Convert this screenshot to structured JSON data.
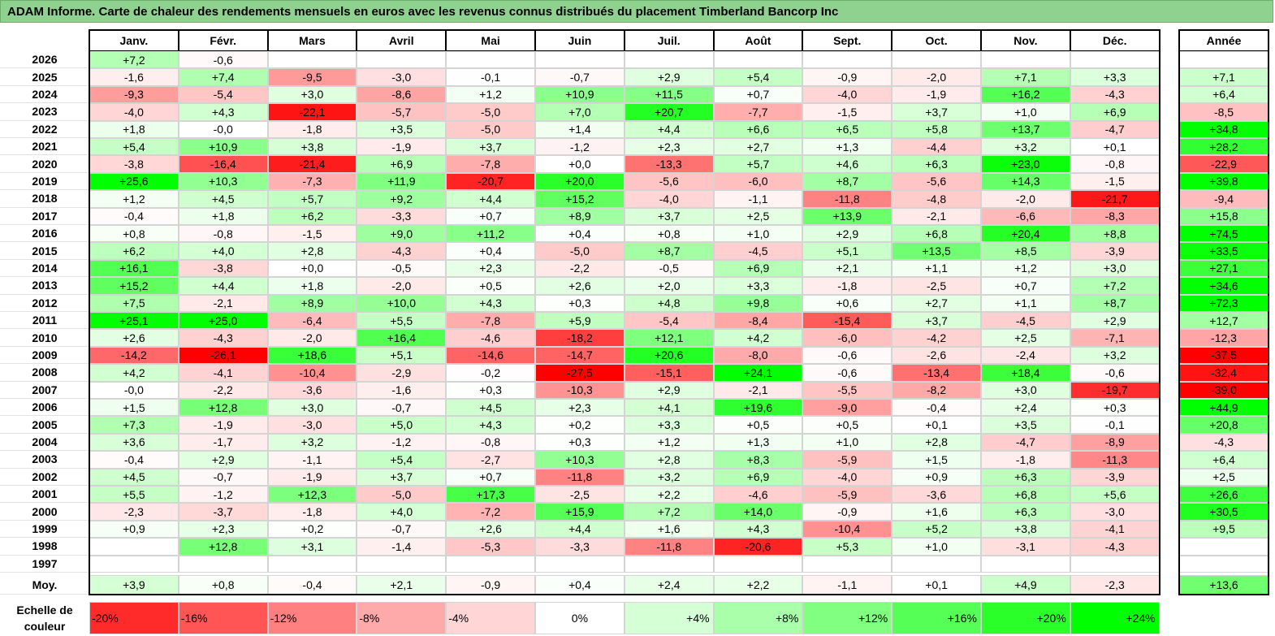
{
  "title": "ADAM Informe. Carte de chaleur des rendements mensuels en euros avec les revenus connus distribués du placement Timberland Bancorp Inc",
  "chart_data": {
    "type": "heatmap",
    "columns": [
      "Janv.",
      "Févr.",
      "Mars",
      "Avril",
      "Mai",
      "Juin",
      "Juil.",
      "Août",
      "Sept.",
      "Oct.",
      "Nov.",
      "Déc."
    ],
    "year_header": "Année",
    "avg_label": "Moy.",
    "rows": [
      {
        "year": "2026",
        "values": [
          "+7,2",
          "-0,6",
          "",
          "",
          "",
          "",
          "",
          "",
          "",
          "",
          "",
          ""
        ],
        "annual": ""
      },
      {
        "year": "2025",
        "values": [
          "-1,6",
          "+7,4",
          "-9,5",
          "-3,0",
          "-0,1",
          "-0,7",
          "+2,9",
          "+5,4",
          "-0,9",
          "-2,0",
          "+7,1",
          "+3,3"
        ],
        "annual": "+7,1"
      },
      {
        "year": "2024",
        "values": [
          "-9,3",
          "-5,4",
          "+3,0",
          "-8,6",
          "+1,2",
          "+10,9",
          "+11,5",
          "+0,7",
          "-4,0",
          "-1,9",
          "+16,2",
          "-4,3"
        ],
        "annual": "+6,4"
      },
      {
        "year": "2023",
        "values": [
          "-4,0",
          "+4,3",
          "-22,1",
          "-5,7",
          "-5,0",
          "+7,0",
          "+20,7",
          "-7,7",
          "-1,5",
          "+3,7",
          "+1,0",
          "+6,9"
        ],
        "annual": "-8,5"
      },
      {
        "year": "2022",
        "values": [
          "+1,8",
          "-0,0",
          "-1,8",
          "+3,5",
          "-5,0",
          "+1,4",
          "+4,4",
          "+6,6",
          "+6,5",
          "+5,8",
          "+13,7",
          "-4,7"
        ],
        "annual": "+34,8"
      },
      {
        "year": "2021",
        "values": [
          "+5,4",
          "+10,9",
          "+3,8",
          "-1,9",
          "+3,7",
          "-1,2",
          "+2,3",
          "+2,7",
          "+1,3",
          "-4,4",
          "+3,2",
          "+0,1"
        ],
        "annual": "+28,2"
      },
      {
        "year": "2020",
        "values": [
          "-3,8",
          "-16,4",
          "-21,4",
          "+6,9",
          "-7,8",
          "+0,0",
          "-13,3",
          "+5,7",
          "+4,6",
          "+6,3",
          "+23,0",
          "-0,8"
        ],
        "annual": "-22,9"
      },
      {
        "year": "2019",
        "values": [
          "+25,6",
          "+10,3",
          "-7,3",
          "+11,9",
          "-20,7",
          "+20,0",
          "-5,6",
          "-6,0",
          "+8,7",
          "-5,6",
          "+14,3",
          "-1,5"
        ],
        "annual": "+39,8"
      },
      {
        "year": "2018",
        "values": [
          "+1,2",
          "+4,5",
          "+5,7",
          "+9,2",
          "+4,4",
          "+15,2",
          "-4,0",
          "-1,1",
          "-11,8",
          "-4,8",
          "-2,0",
          "-21,7"
        ],
        "annual": "-9,4"
      },
      {
        "year": "2017",
        "values": [
          "-0,4",
          "+1,8",
          "+6,2",
          "-3,3",
          "+0,7",
          "+8,9",
          "+3,7",
          "+2,5",
          "+13,9",
          "-2,1",
          "-6,6",
          "-8,3"
        ],
        "annual": "+15,8"
      },
      {
        "year": "2016",
        "values": [
          "+0,8",
          "-0,8",
          "-1,5",
          "+9,0",
          "+11,2",
          "+0,4",
          "+0,8",
          "+1,0",
          "+2,9",
          "+6,8",
          "+20,4",
          "+8,8"
        ],
        "annual": "+74,5"
      },
      {
        "year": "2015",
        "values": [
          "+6,2",
          "+4,0",
          "+2,8",
          "-4,3",
          "+0,4",
          "-5,0",
          "+8,7",
          "-4,5",
          "+5,1",
          "+13,5",
          "+8,5",
          "-3,9"
        ],
        "annual": "+33,5"
      },
      {
        "year": "2014",
        "values": [
          "+16,1",
          "-3,8",
          "+0,0",
          "-0,5",
          "+2,3",
          "-2,2",
          "-0,5",
          "+6,9",
          "+2,1",
          "+1,1",
          "+1,2",
          "+3,0"
        ],
        "annual": "+27,1"
      },
      {
        "year": "2013",
        "values": [
          "+15,2",
          "+4,4",
          "+1,8",
          "-2,0",
          "+0,5",
          "+2,6",
          "+2,0",
          "+3,3",
          "-1,8",
          "-2,5",
          "+0,7",
          "+7,2"
        ],
        "annual": "+34,6"
      },
      {
        "year": "2012",
        "values": [
          "+7,5",
          "-2,1",
          "+8,9",
          "+10,0",
          "+4,3",
          "+0,3",
          "+4,8",
          "+9,8",
          "+0,6",
          "+2,7",
          "+1,1",
          "+8,7"
        ],
        "annual": "+72,3"
      },
      {
        "year": "2011",
        "values": [
          "+25,1",
          "+25,0",
          "-6,4",
          "+5,5",
          "-7,8",
          "+5,9",
          "-5,4",
          "-8,4",
          "-15,4",
          "+3,7",
          "-4,5",
          "+2,9"
        ],
        "annual": "+12,7"
      },
      {
        "year": "2010",
        "values": [
          "+2,6",
          "-4,3",
          "-2,0",
          "+16,4",
          "-4,6",
          "-18,2",
          "+12,1",
          "+4,2",
          "-6,0",
          "-4,2",
          "+2,5",
          "-7,1"
        ],
        "annual": "-12,3"
      },
      {
        "year": "2009",
        "values": [
          "-14,2",
          "-26,1",
          "+18,6",
          "+5,1",
          "-14,6",
          "-14,7",
          "+20,6",
          "-8,0",
          "-0,6",
          "-2,6",
          "-2,4",
          "+3,2"
        ],
        "annual": "-37,5"
      },
      {
        "year": "2008",
        "values": [
          "+4,2",
          "-4,1",
          "-10,4",
          "-2,9",
          "-0,2",
          "-27,5",
          "-15,1",
          "+24,1",
          "-0,6",
          "-13,4",
          "+18,4",
          "-0,6"
        ],
        "annual": "-32,4"
      },
      {
        "year": "2007",
        "values": [
          "-0,0",
          "-2,2",
          "-3,6",
          "-1,6",
          "+0,3",
          "-10,3",
          "+2,9",
          "-2,1",
          "-5,5",
          "-8,2",
          "+3,0",
          "-19,7"
        ],
        "annual": "-39,0"
      },
      {
        "year": "2006",
        "values": [
          "+1,5",
          "+12,8",
          "+3,0",
          "-0,7",
          "+4,5",
          "+2,3",
          "+4,1",
          "+19,6",
          "-9,0",
          "-0,4",
          "+2,4",
          "+0,3"
        ],
        "annual": "+44,9"
      },
      {
        "year": "2005",
        "values": [
          "+7,3",
          "-1,9",
          "-3,0",
          "+5,0",
          "+4,3",
          "+0,2",
          "+3,3",
          "+0,5",
          "+0,5",
          "+0,1",
          "+3,5",
          "-0,1"
        ],
        "annual": "+20,8"
      },
      {
        "year": "2004",
        "values": [
          "+3,6",
          "-1,7",
          "+3,2",
          "-1,2",
          "-0,8",
          "+0,3",
          "+1,2",
          "+1,3",
          "+1,0",
          "+2,8",
          "-4,7",
          "-8,9"
        ],
        "annual": "-4,3"
      },
      {
        "year": "2003",
        "values": [
          "-0,4",
          "+2,9",
          "-1,1",
          "+5,4",
          "-2,7",
          "+10,3",
          "+2,8",
          "+8,3",
          "-5,9",
          "+1,5",
          "-1,8",
          "-11,3"
        ],
        "annual": "+6,4"
      },
      {
        "year": "2002",
        "values": [
          "+4,5",
          "-0,7",
          "-1,9",
          "+3,7",
          "+0,7",
          "-11,8",
          "+3,2",
          "+6,9",
          "-4,0",
          "+0,9",
          "+6,3",
          "-3,9"
        ],
        "annual": "+2,5"
      },
      {
        "year": "2001",
        "values": [
          "+5,5",
          "-1,2",
          "+12,3",
          "-5,0",
          "+17,3",
          "-2,5",
          "+2,2",
          "-4,6",
          "-5,9",
          "-3,6",
          "+6,8",
          "+5,6"
        ],
        "annual": "+26,6"
      },
      {
        "year": "2000",
        "values": [
          "-2,3",
          "-3,7",
          "-1,8",
          "+4,0",
          "-7,2",
          "+15,9",
          "+7,2",
          "+14,0",
          "-0,9",
          "+1,6",
          "+6,3",
          "-3,0"
        ],
        "annual": "+30,5"
      },
      {
        "year": "1999",
        "values": [
          "+0,9",
          "+2,3",
          "+0,2",
          "-0,7",
          "+2,6",
          "+4,4",
          "+1,6",
          "+4,3",
          "-10,4",
          "+5,2",
          "+3,8",
          "-4,1"
        ],
        "annual": "+9,5"
      },
      {
        "year": "1998",
        "values": [
          "",
          "+12,8",
          "+3,1",
          "-1,4",
          "-5,3",
          "-3,3",
          "-11,8",
          "-20,6",
          "+5,3",
          "+1,0",
          "-3,1",
          "-4,3"
        ],
        "annual": ""
      },
      {
        "year": "1997",
        "values": [
          "",
          "",
          "",
          "",
          "",
          "",
          "",
          "",
          "",
          "",
          "",
          ""
        ],
        "annual": ""
      }
    ],
    "average": {
      "values": [
        "+3,9",
        "+0,8",
        "-0,4",
        "+2,1",
        "-0,9",
        "+0,4",
        "+2,4",
        "+2,2",
        "-1,1",
        "+0,1",
        "+4,9",
        "-2,3"
      ],
      "annual": "+13,6"
    },
    "scale_label_1": "Echelle de",
    "scale_label_2": "couleur",
    "scale": [
      "-20%",
      "-16%",
      "-12%",
      "-8%",
      "-4%",
      "0%",
      "+4%",
      "+8%",
      "+12%",
      "+16%",
      "+20%",
      "+24%"
    ]
  }
}
